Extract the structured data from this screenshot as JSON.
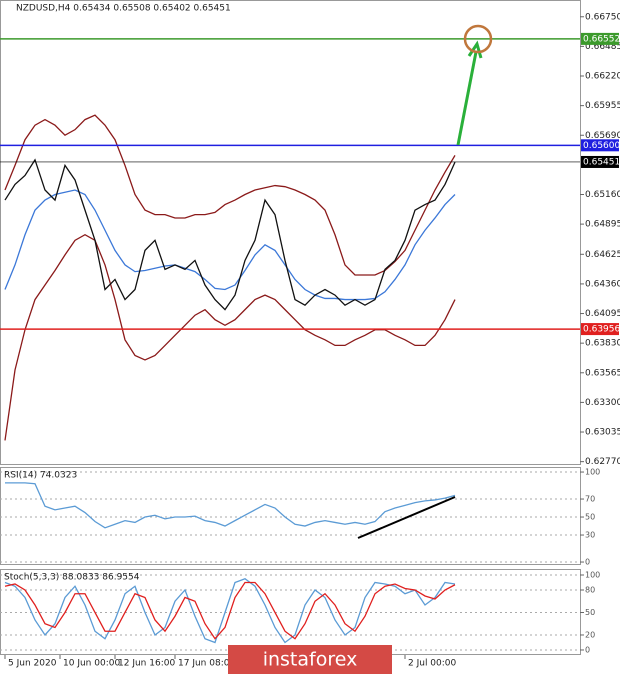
{
  "chart_data": [
    {
      "type": "line",
      "title": "NZDUSD,H4  0.65434 0.65508 0.65402 0.65451",
      "xlim": [
        -0.5,
        57.5
      ],
      "ylim": [
        0.6274,
        0.669
      ],
      "grid": false,
      "yticks": [
        {
          "value": 0.6675,
          "label": "0.66750"
        },
        0.66485,
        {
          "value": 0.6622,
          "label": "0.66220"
        },
        0.65955,
        {
          "value": 0.6569,
          "label": "0.65690"
        },
        {
          "value": 0.6516,
          "label": "0.65160"
        },
        0.64895,
        0.64625,
        {
          "value": 0.6436,
          "label": "0.64360"
        },
        0.64095,
        {
          "value": 0.6383,
          "label": "0.63830"
        },
        0.63565,
        {
          "value": 0.633,
          "label": "0.63300"
        },
        0.63035,
        {
          "value": 0.6277,
          "label": "0.62770"
        }
      ],
      "levels": [
        {
          "value": 0.66552,
          "color": "#3c9a2c"
        },
        {
          "value": 0.656,
          "label": "0.65600",
          "color": "#1f1fe0"
        },
        {
          "value": 0.63956,
          "color": "#e0201f"
        },
        {
          "value": 0.65451,
          "color": "#000000"
        }
      ],
      "series": [
        {
          "color": "#8b1a1a",
          "values": [
            0.652,
            0.6542,
            0.6565,
            0.6578,
            0.6583,
            0.6578,
            0.6569,
            0.6574,
            0.6583,
            0.6587,
            0.6578,
            0.6565,
            0.6542,
            0.6516,
            0.6502,
            0.6498,
            0.6498,
            0.6495,
            0.6495,
            0.6498,
            0.6498,
            0.65,
            0.6507,
            0.6511,
            0.6516,
            0.652,
            0.6522,
            0.6524,
            0.6523,
            0.652,
            0.6516,
            0.6511,
            0.6502,
            0.648,
            0.6453,
            0.6444,
            0.6444,
            0.6444,
            0.6448,
            0.6456,
            0.6466,
            0.6484,
            0.6502,
            0.652,
            0.6536,
            0.6551
          ]
        },
        {
          "color": "#8b1a1a",
          "values": [
            0.6296,
            0.6359,
            0.6395,
            0.6422,
            0.6435,
            0.6448,
            0.6462,
            0.6475,
            0.648,
            0.6475,
            0.6453,
            0.6422,
            0.6386,
            0.6372,
            0.6368,
            0.6372,
            0.6381,
            0.639,
            0.6399,
            0.6408,
            0.6413,
            0.6404,
            0.6399,
            0.6404,
            0.6413,
            0.6422,
            0.6426,
            0.6422,
            0.6413,
            0.6404,
            0.6395,
            0.639,
            0.6386,
            0.6381,
            0.6381,
            0.6386,
            0.639,
            0.6395,
            0.6395,
            0.639,
            0.6386,
            0.6381,
            0.6381,
            0.639,
            0.6404,
            0.6422
          ]
        },
        {
          "color": "#3c78d8",
          "values": [
            0.6431,
            0.6453,
            0.648,
            0.6502,
            0.6511,
            0.6516,
            0.6518,
            0.652,
            0.6516,
            0.6502,
            0.6484,
            0.6466,
            0.6453,
            0.6447,
            0.6448,
            0.645,
            0.6452,
            0.6453,
            0.645,
            0.6447,
            0.644,
            0.6432,
            0.6431,
            0.6435,
            0.6448,
            0.6462,
            0.6471,
            0.6466,
            0.6453,
            0.644,
            0.6431,
            0.6426,
            0.6423,
            0.6423,
            0.6422,
            0.6422,
            0.6422,
            0.6423,
            0.6429,
            0.644,
            0.6453,
            0.6471,
            0.6484,
            0.6495,
            0.6507,
            0.6516
          ]
        },
        {
          "color": "#111111",
          "values": [
            0.6511,
            0.6525,
            0.6533,
            0.6547,
            0.652,
            0.6511,
            0.6542,
            0.6529,
            0.6502,
            0.6475,
            0.6431,
            0.644,
            0.6422,
            0.6431,
            0.6466,
            0.6475,
            0.6449,
            0.6453,
            0.6449,
            0.6457,
            0.6435,
            0.6422,
            0.6413,
            0.6426,
            0.6457,
            0.6475,
            0.6511,
            0.6498,
            0.6457,
            0.6422,
            0.6417,
            0.6426,
            0.6431,
            0.6426,
            0.6417,
            0.6422,
            0.6417,
            0.6422,
            0.6449,
            0.6457,
            0.6475,
            0.6502,
            0.6507,
            0.6511,
            0.6525,
            0.6545
          ]
        }
      ]
    },
    {
      "type": "line",
      "title": "RSI(14) 74.0323",
      "xlim": [
        -0.5,
        57.5
      ],
      "ylim": [
        -3.3,
        105.6
      ],
      "grid": true,
      "yticks": [
        0,
        30,
        50,
        70,
        100
      ],
      "series": [
        {
          "color": "#5b9bd5",
          "values": [
            88,
            88,
            88,
            87,
            62,
            58,
            60,
            62,
            55,
            45,
            38,
            42,
            46,
            44,
            50,
            52,
            48,
            50,
            50,
            51,
            46,
            44,
            40,
            46,
            52,
            58,
            64,
            60,
            50,
            42,
            40,
            44,
            46,
            44,
            42,
            44,
            42,
            45,
            56,
            60,
            63,
            66,
            68,
            69,
            71,
            74
          ]
        }
      ]
    },
    {
      "type": "line",
      "title": "Stoch(5,3,3) 88.0833 86.9554",
      "xlim": [
        -0.5,
        57.5
      ],
      "ylim": [
        -6.7,
        108
      ],
      "grid": true,
      "yticks": [
        0,
        20,
        50,
        80,
        100
      ],
      "xticks": [
        {
          "value": 0,
          "label": "5 Jun 2020"
        },
        {
          "value": 5.5,
          "label": "10 Jun 00:00"
        },
        {
          "value": 11,
          "label": "12 Jun 16:00"
        },
        {
          "value": 17,
          "label": "17 Jun 08:00"
        },
        {
          "value": 40,
          "label": "2 Jul 00:00"
        }
      ],
      "series": [
        {
          "color": "#5b9bd5",
          "values": [
            90,
            85,
            70,
            40,
            20,
            35,
            70,
            85,
            60,
            25,
            15,
            40,
            75,
            85,
            50,
            20,
            30,
            65,
            80,
            45,
            15,
            10,
            50,
            90,
            95,
            85,
            60,
            30,
            10,
            20,
            60,
            80,
            70,
            40,
            20,
            30,
            70,
            90,
            88,
            85,
            75,
            80,
            60,
            70,
            90,
            88
          ]
        },
        {
          "color": "#e0201f",
          "values": [
            85,
            88,
            80,
            60,
            35,
            30,
            50,
            75,
            75,
            50,
            25,
            25,
            50,
            75,
            70,
            40,
            25,
            45,
            70,
            65,
            35,
            15,
            30,
            70,
            90,
            90,
            75,
            50,
            25,
            15,
            35,
            65,
            75,
            60,
            35,
            25,
            45,
            75,
            85,
            88,
            82,
            80,
            72,
            68,
            80,
            87
          ]
        }
      ]
    }
  ],
  "watermark": "instaforex"
}
